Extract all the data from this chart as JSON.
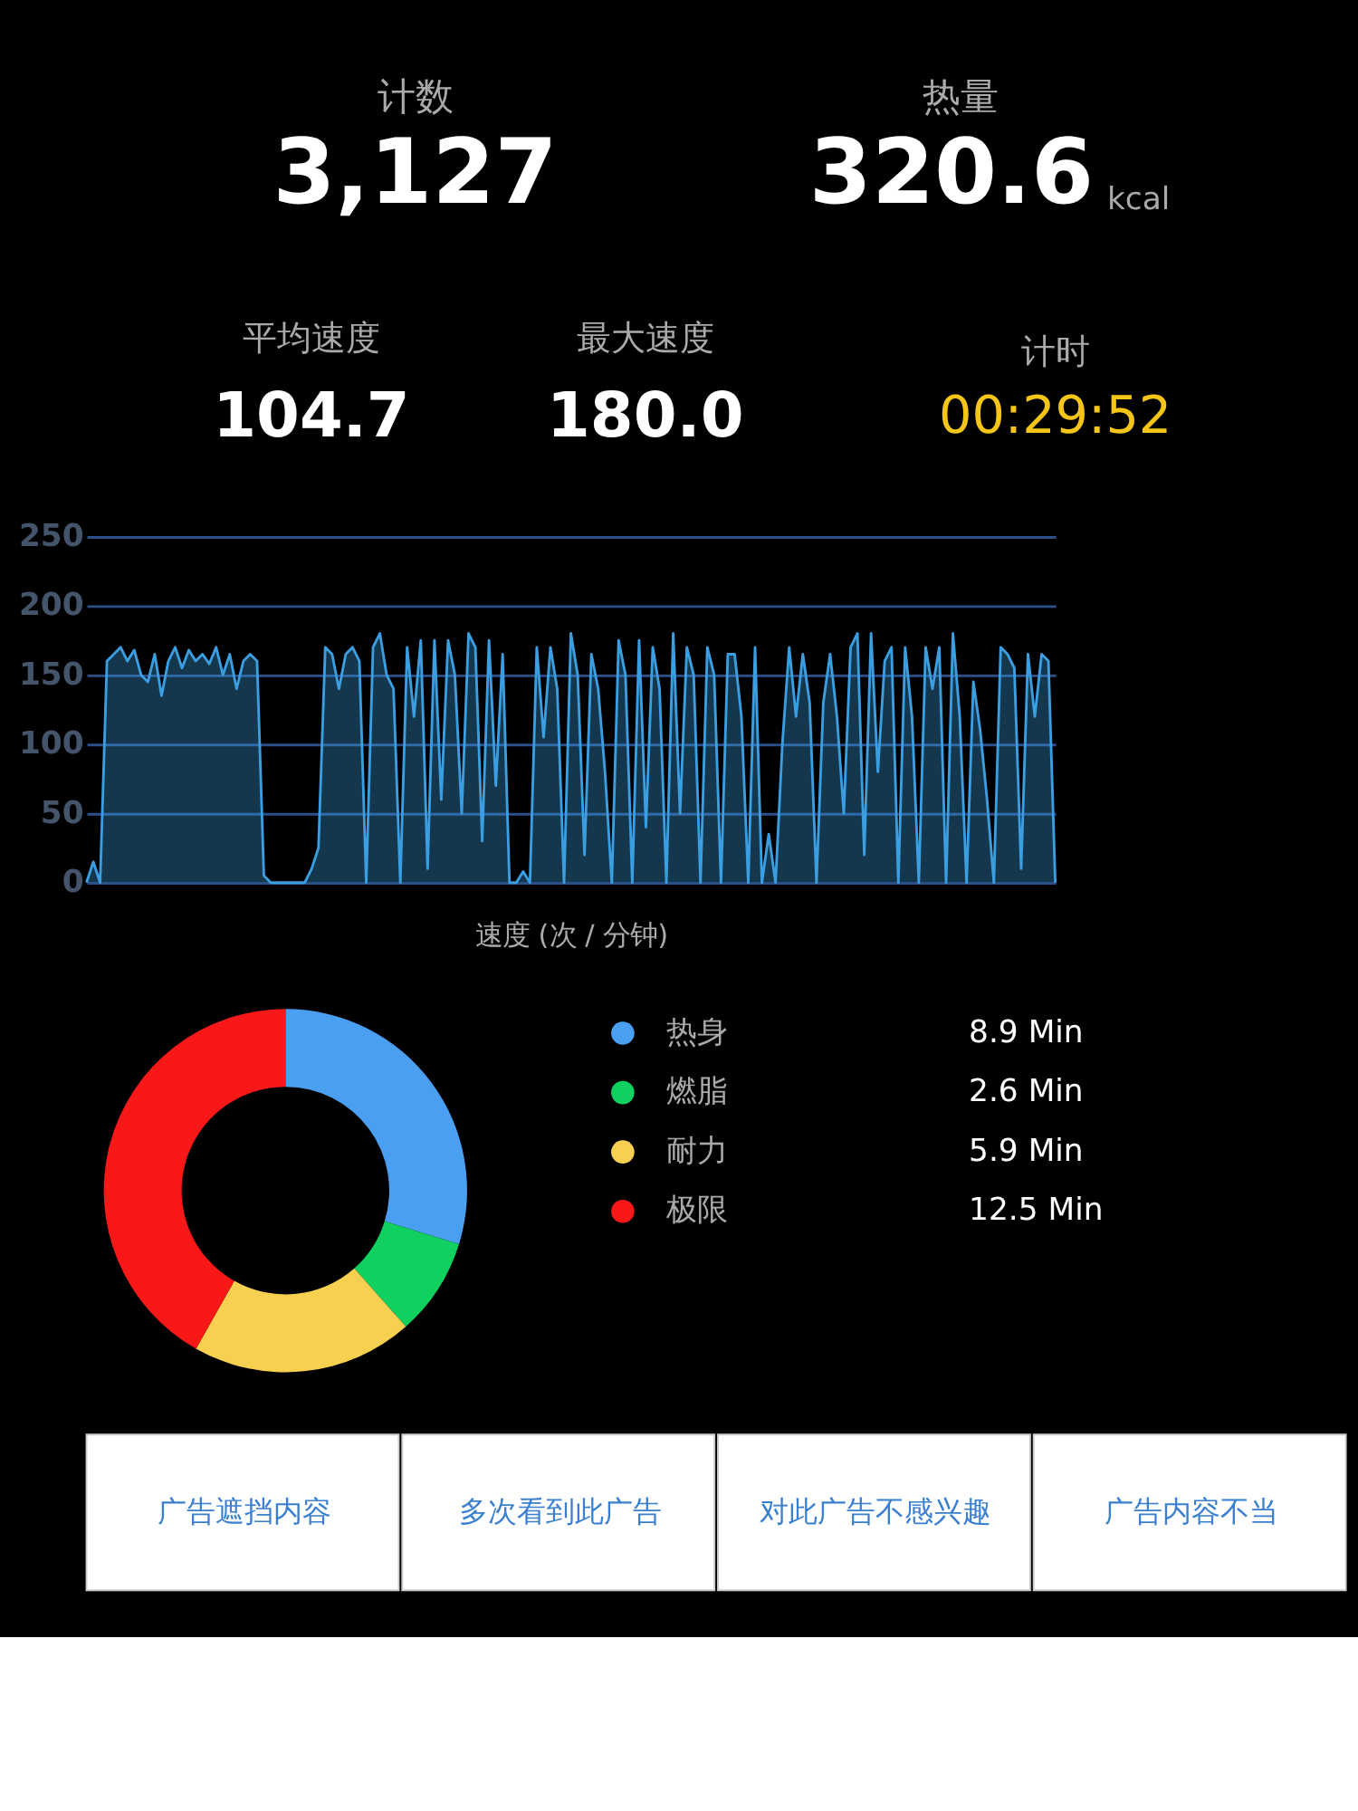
{
  "chart_data": [
    {
      "type": "other",
      "annotations": [
        "计数",
        "3,127",
        "热量",
        "320.6",
        "kcal",
        "平均速度",
        "104.7",
        "最大速度",
        "180.0",
        "计时",
        "00:29:52"
      ]
    },
    {
      "type": "area",
      "xlabel": "速度 (次 / 分钟)",
      "ylim": [
        0,
        250
      ],
      "yticks": [
        0,
        50,
        100,
        150,
        200,
        250
      ],
      "grid": "y",
      "categories": [
        null,
        null,
        null,
        null,
        null,
        null,
        null,
        null,
        null,
        null,
        null,
        null,
        null,
        null,
        null,
        null,
        null,
        null,
        null,
        null,
        null,
        null,
        null,
        null,
        null,
        null,
        null,
        null,
        null,
        null,
        null,
        null,
        null,
        null,
        null,
        null,
        null,
        null,
        null,
        null,
        null,
        null,
        null,
        null,
        null,
        null,
        null,
        null,
        null,
        null,
        null,
        null,
        null,
        null,
        null,
        null,
        null,
        null,
        null,
        null,
        null,
        null,
        null,
        null,
        null,
        null,
        null,
        null,
        null,
        null,
        null,
        null,
        null,
        null,
        null,
        null,
        null,
        null,
        null,
        null,
        null,
        null,
        null,
        null,
        null,
        null,
        null,
        null,
        null,
        null,
        null,
        null,
        null,
        null,
        null,
        null,
        null,
        null,
        null,
        null,
        null,
        null,
        null,
        null,
        null,
        null,
        null,
        null,
        null,
        null,
        null,
        null,
        null,
        null,
        null,
        null,
        null,
        null,
        null,
        null,
        null,
        null,
        null,
        null,
        null,
        null,
        null,
        null,
        null,
        null,
        null,
        null,
        null,
        null,
        null,
        null,
        null,
        null,
        null,
        null,
        null,
        null,
        null
      ],
      "series": [
        {
          "color": "#3a9ee0",
          "values": [
            0,
            15,
            0,
            160,
            165,
            170,
            160,
            168,
            150,
            145,
            165,
            135,
            160,
            170,
            155,
            168,
            160,
            165,
            158,
            170,
            150,
            165,
            140,
            160,
            165,
            160,
            5,
            0,
            0,
            0,
            0,
            0,
            0,
            10,
            25,
            170,
            165,
            140,
            165,
            170,
            160,
            0,
            170,
            180,
            150,
            140,
            0,
            170,
            120,
            175,
            10,
            175,
            60,
            175,
            150,
            50,
            180,
            170,
            30,
            175,
            70,
            165,
            0,
            0,
            8,
            0,
            170,
            105,
            170,
            140,
            0,
            180,
            150,
            20,
            165,
            140,
            80,
            0,
            175,
            150,
            0,
            175,
            40,
            170,
            140,
            0,
            180,
            50,
            170,
            150,
            0,
            170,
            150,
            0,
            165,
            165,
            120,
            0,
            170,
            0,
            35,
            0,
            100,
            170,
            120,
            165,
            130,
            0,
            130,
            165,
            120,
            50,
            170,
            180,
            20,
            180,
            80,
            160,
            170,
            0,
            170,
            120,
            0,
            170,
            140,
            170,
            0,
            180,
            120,
            0,
            145,
            110,
            60,
            0,
            170,
            165,
            155,
            10,
            165,
            120,
            165,
            160,
            0
          ]
        }
      ]
    },
    {
      "type": "donut",
      "categories": [
        "热身",
        "燃脂",
        "耐力",
        "极限"
      ],
      "values": [
        8.9,
        2.6,
        5.9,
        12.5
      ],
      "colors": [
        "#4a9ff0",
        "#10d060",
        "#f8d050",
        "#f81818"
      ],
      "value_labels": [
        "8.9 Min",
        "2.6 Min",
        "5.9 Min",
        "12.5 Min"
      ],
      "legend": "right"
    },
    {
      "type": "other",
      "annotations": [
        "广告遮挡内容",
        "多次看到此广告",
        "对此广告不感兴趣",
        "广告内容不当"
      ]
    }
  ]
}
